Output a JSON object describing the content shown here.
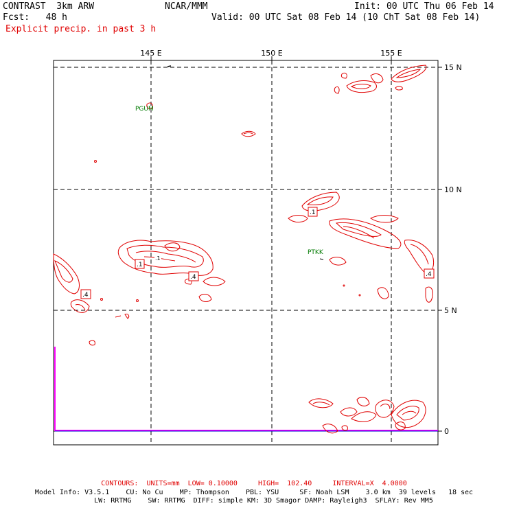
{
  "header": {
    "model": "CONTRAST  3km ARW",
    "org": "NCAR/MMM",
    "init": "Init: 00 UTC Thu 06 Feb 14",
    "fcst": "Fcst:   48 h",
    "valid": "Valid: 00 UTC Sat 08 Feb 14 (10 ChT Sat 08 Feb 14)",
    "field": "Explicit precip. in past 3 h"
  },
  "map": {
    "lon_labels": [
      "145 E",
      "150 E",
      "155 E"
    ],
    "lat_labels": [
      "15 N",
      "10 N",
      "5 N",
      "0"
    ],
    "stations": [
      "PGUM",
      "PTKK"
    ],
    "contour_labels": [
      ".1",
      ".1",
      ".4",
      ".4",
      ".1",
      ".4"
    ],
    "colors": {
      "contour": "#e00000",
      "station": "#007a00",
      "boundary": "#ff00ff",
      "grid": "#000000"
    }
  },
  "footer": {
    "contours": "CONTOURS:  UNITS=mm  LOW= 0.10000     HIGH=  102.40     INTERVAL=X  4.0000",
    "info1": "Model Info: V3.5.1    CU: No Cu    MP: Thompson    PBL: YSU     SF: Noah LSM    3.0 km  39 levels   18 sec",
    "info2": "LW: RRTMG    SW: RRTMG  DIFF: simple KM: 3D Smagor DAMP: Rayleigh3  SFLAY: Rev MM5"
  }
}
